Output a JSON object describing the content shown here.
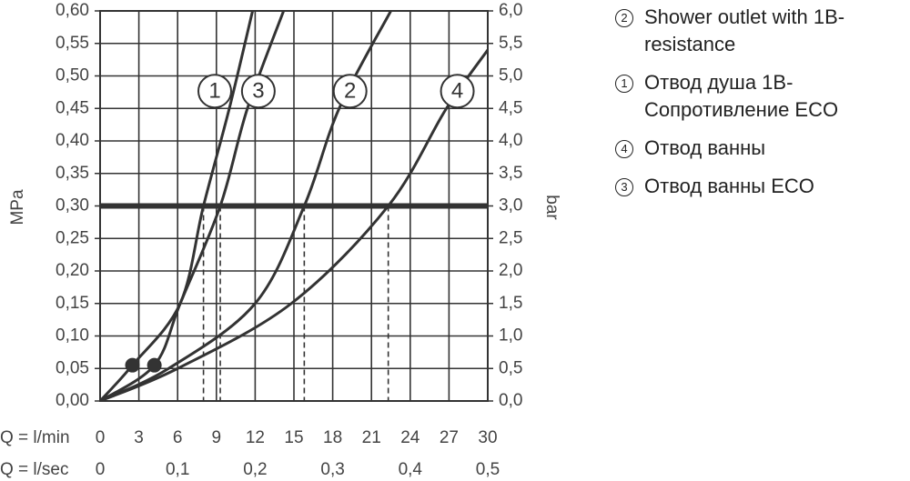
{
  "chart_data": {
    "type": "line",
    "xlabel": "Q = l/min",
    "x2label": "Q = l/sec",
    "ylabel": "MPa",
    "y2label": "bar",
    "xlim": [
      0,
      30
    ],
    "xticks": [
      0,
      3,
      6,
      9,
      12,
      15,
      18,
      21,
      24,
      27,
      30
    ],
    "x2lim": [
      0,
      0.5
    ],
    "x2ticks": [
      0,
      {
        "value": 0.1,
        "label": "0,1"
      },
      {
        "value": 0.2,
        "label": "0,2"
      },
      {
        "value": 0.3,
        "label": "0,3"
      },
      {
        "value": 0.4,
        "label": "0,4"
      },
      {
        "value": 0.5,
        "label": "0,5"
      }
    ],
    "ylim": [
      0,
      0.6
    ],
    "yticks": [
      {
        "value": 0,
        "label": "0,00"
      },
      {
        "value": 0.05,
        "label": "0,05"
      },
      {
        "value": 0.1,
        "label": "0,10"
      },
      {
        "value": 0.15,
        "label": "0,15"
      },
      {
        "value": 0.2,
        "label": "0,20"
      },
      {
        "value": 0.25,
        "label": "0,25"
      },
      {
        "value": 0.3,
        "label": "0,30"
      },
      {
        "value": 0.35,
        "label": "0,35"
      },
      {
        "value": 0.4,
        "label": "0,40"
      },
      {
        "value": 0.45,
        "label": "0,45"
      },
      {
        "value": 0.5,
        "label": "0,50"
      },
      {
        "value": 0.55,
        "label": "0,55"
      },
      {
        "value": 0.6,
        "label": "0,60"
      }
    ],
    "y2lim": [
      0,
      6
    ],
    "y2ticks": [
      {
        "value": 0,
        "label": "0,0"
      },
      {
        "value": 0.5,
        "label": "0,5"
      },
      {
        "value": 1,
        "label": "1,0"
      },
      {
        "value": 1.5,
        "label": "1,5"
      },
      {
        "value": 2,
        "label": "2,0"
      },
      {
        "value": 2.5,
        "label": "2,5"
      },
      {
        "value": 3,
        "label": "3,0"
      },
      {
        "value": 3.5,
        "label": "3,5"
      },
      {
        "value": 4,
        "label": "4,0"
      },
      {
        "value": 4.5,
        "label": "4,5"
      },
      {
        "value": 5,
        "label": "5,0"
      },
      {
        "value": 5.5,
        "label": "5,5"
      },
      {
        "value": 6,
        "label": "6,0"
      }
    ],
    "grid": true,
    "color": "#333333",
    "threshold": 0.3,
    "points": {
      "x": [
        2.5,
        4.2
      ],
      "values": [
        0.055,
        0.055
      ]
    },
    "series": [
      {
        "label": "1",
        "name": "Отвод душа 1B-Сопротивление ECO",
        "x": [
          0,
          2.5,
          6.2,
          8,
          10,
          11.8
        ],
        "values": [
          0,
          0.055,
          0.15,
          0.3,
          0.45,
          0.6
        ]
      },
      {
        "label": "2",
        "name": "Shower outlet with 1B-resistance",
        "x": [
          0,
          5.3,
          12,
          15.8,
          18.5,
          22.5
        ],
        "values": [
          0,
          0.05,
          0.15,
          0.3,
          0.45,
          0.6
        ]
      },
      {
        "label": "3",
        "name": "Отвод ванны ECO",
        "x": [
          0,
          4.2,
          6.2,
          9.3,
          11.4,
          14.2
        ],
        "values": [
          0,
          0.055,
          0.15,
          0.3,
          0.45,
          0.6
        ]
      },
      {
        "label": "4",
        "name": "Отвод ванны",
        "x": [
          0,
          6,
          14.8,
          22.3,
          26.8,
          30
        ],
        "values": [
          0,
          0.05,
          0.15,
          0.3,
          0.45,
          0.54
        ]
      }
    ]
  }
}
